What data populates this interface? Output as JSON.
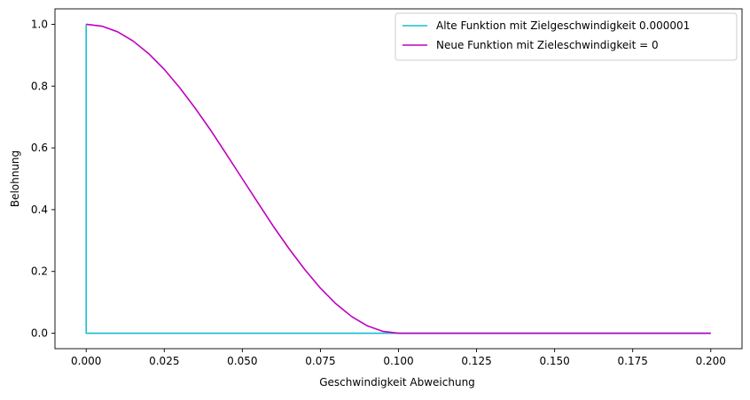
{
  "chart_data": {
    "type": "line",
    "title": "",
    "xlabel": "Geschwindigkeit Abweichung",
    "ylabel": "Belohnung",
    "xlim": [
      -0.01,
      0.21
    ],
    "ylim": [
      -0.05,
      1.05
    ],
    "x_ticks": [
      0.0,
      0.025,
      0.05,
      0.075,
      0.1,
      0.125,
      0.15,
      0.175,
      0.2
    ],
    "x_tick_labels": [
      "0.000",
      "0.025",
      "0.050",
      "0.075",
      "0.100",
      "0.125",
      "0.150",
      "0.175",
      "0.200"
    ],
    "y_ticks": [
      0.0,
      0.2,
      0.4,
      0.6,
      0.8,
      1.0
    ],
    "y_tick_labels": [
      "0.0",
      "0.2",
      "0.4",
      "0.6",
      "0.8",
      "1.0"
    ],
    "grid": false,
    "legend_position": "top-right",
    "series": [
      {
        "name": "Alte Funktion mit Zielgeschwindigkeit 0.000001",
        "color": "#17becf",
        "x": [
          0.0,
          0.0,
          1e-05,
          0.2
        ],
        "y": [
          1.0,
          0.0,
          0.0,
          0.0
        ]
      },
      {
        "name": "Neue Funktion mit Zieleschwindigkeit = 0",
        "color": "#bf00bf",
        "x": [
          0.0,
          0.005,
          0.01,
          0.015,
          0.02,
          0.025,
          0.03,
          0.035,
          0.04,
          0.045,
          0.05,
          0.055,
          0.06,
          0.065,
          0.07,
          0.075,
          0.08,
          0.085,
          0.09,
          0.095,
          0.1,
          0.125,
          0.15,
          0.175,
          0.2
        ],
        "y": [
          1.0,
          0.994,
          0.976,
          0.946,
          0.905,
          0.854,
          0.794,
          0.727,
          0.655,
          0.578,
          0.5,
          0.422,
          0.345,
          0.273,
          0.206,
          0.146,
          0.095,
          0.054,
          0.024,
          0.006,
          0.0,
          0.0,
          0.0,
          0.0,
          0.0
        ]
      }
    ]
  }
}
